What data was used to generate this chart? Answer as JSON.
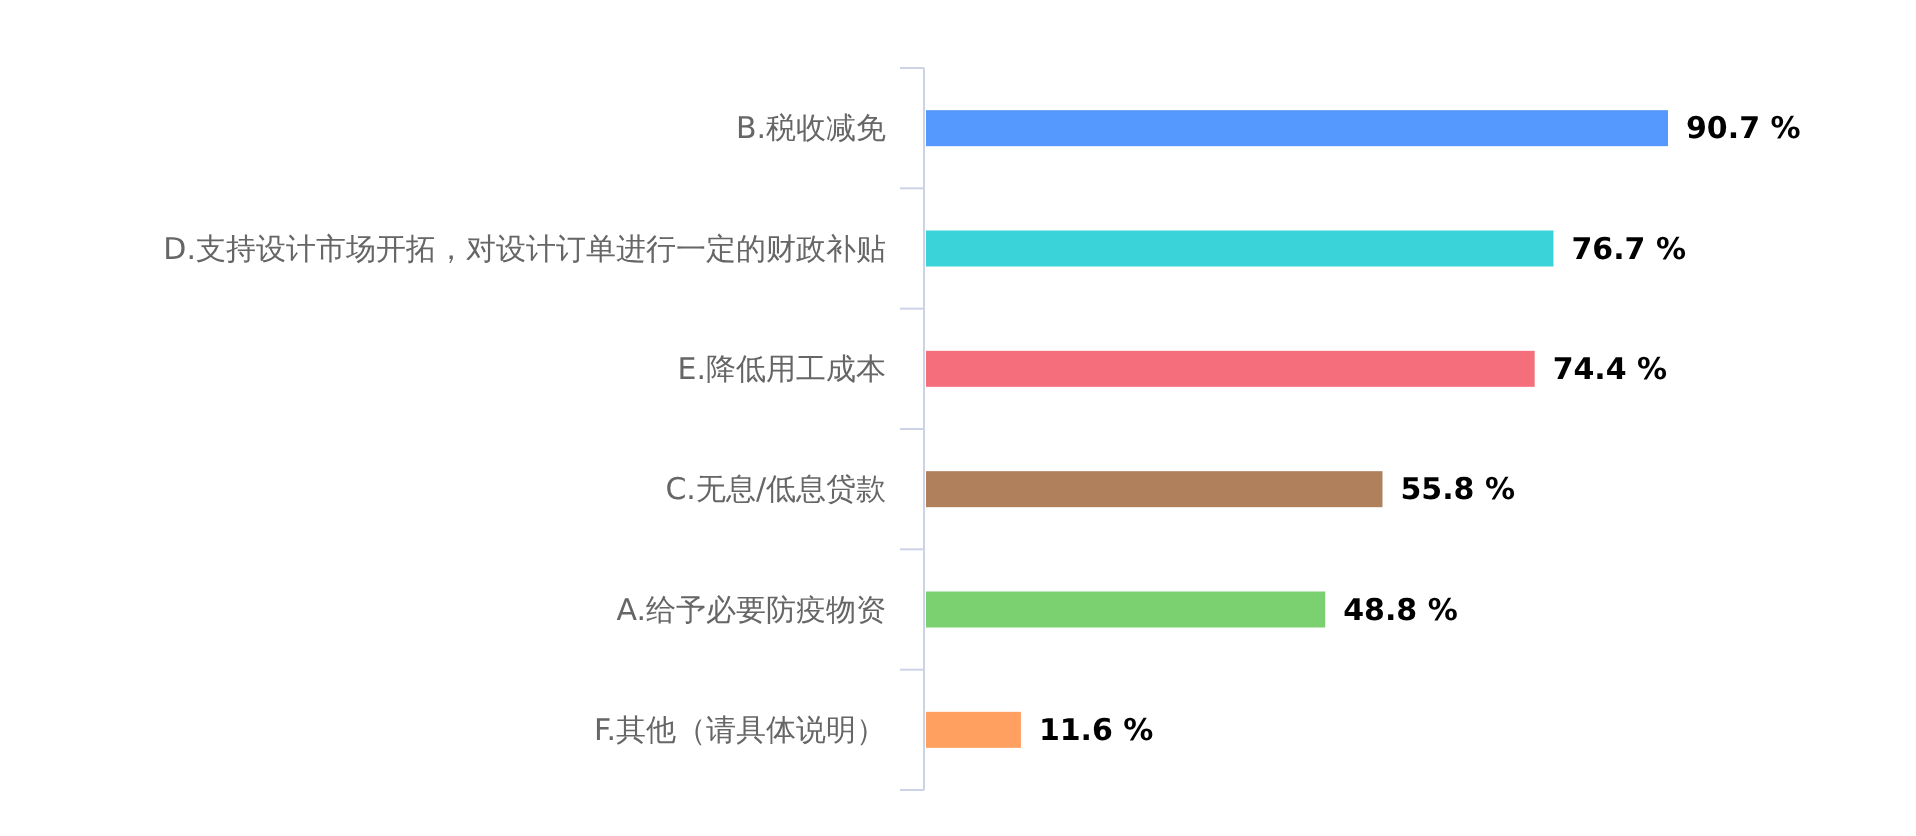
{
  "chart_data": {
    "type": "bar",
    "orientation": "horizontal",
    "categories": [
      "B.税收减免",
      "D.支持设计市场开拓，对设计订单进行一定的财政补贴",
      "E.降低用工成本",
      "C.无息/低息贷款",
      "A.给予必要防疫物资",
      "F.其他（请具体说明）"
    ],
    "values": [
      90.7,
      76.7,
      74.4,
      55.8,
      48.8,
      11.6
    ],
    "value_labels": [
      "90.7 %",
      "76.7 %",
      "74.4 %",
      "55.8 %",
      "48.8 %",
      "11.6 %"
    ],
    "colors": [
      "#5599ff",
      "#3ad3da",
      "#f46e7b",
      "#b0805c",
      "#7bd06f",
      "#ff9f60"
    ],
    "grid": false
  }
}
